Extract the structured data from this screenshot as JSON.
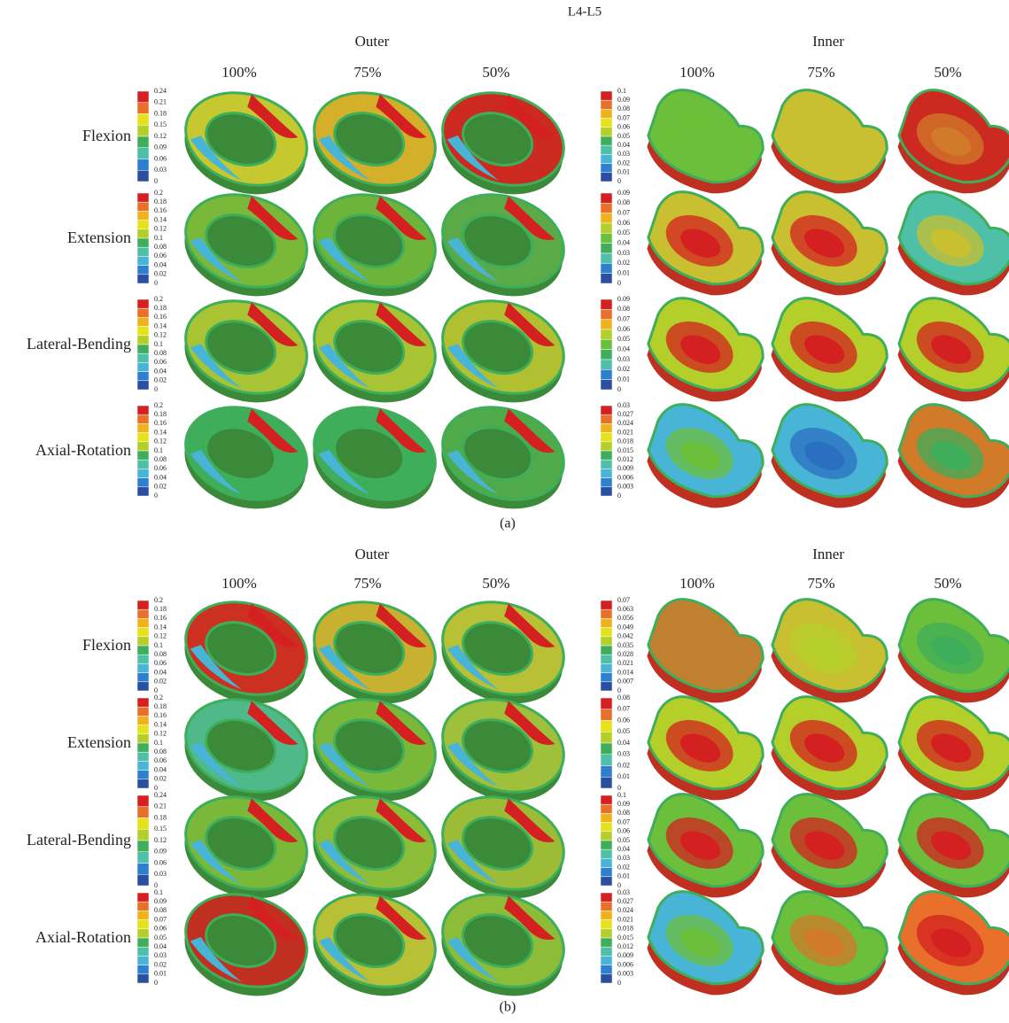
{
  "title": "L4-L5",
  "panels": [
    {
      "label": "(a)",
      "groups": [
        {
          "title": "Outer",
          "columns": [
            "100%",
            "75%",
            "50%"
          ]
        },
        {
          "title": "Inner",
          "columns": [
            "100%",
            "75%",
            "50%"
          ]
        }
      ],
      "rows": [
        {
          "label": "Flexion",
          "legends": [
            [
              "0.24",
              "0.21",
              "0.18",
              "0.15",
              "0.12",
              "0.09",
              "0.06",
              "0.03",
              "0"
            ],
            [
              "0.1",
              "0.09",
              "0.08",
              "0.07",
              "0.06",
              "0.05",
              "0.04",
              "0.03",
              "0.02",
              "0.01",
              "0"
            ]
          ]
        },
        {
          "label": "Extension",
          "legends": [
            [
              "0.2",
              "0.18",
              "0.16",
              "0.14",
              "0.12",
              "0.1",
              "0.08",
              "0.06",
              "0.04",
              "0.02",
              "0"
            ],
            [
              "0.09",
              "0.08",
              "0.07",
              "0.06",
              "0.05",
              "0.04",
              "0.03",
              "0.02",
              "0.01",
              "0"
            ]
          ]
        },
        {
          "label": "Lateral-Bending",
          "legends": [
            [
              "0.2",
              "0.18",
              "0.16",
              "0.14",
              "0.12",
              "0.1",
              "0.08",
              "0.06",
              "0.04",
              "0.02",
              "0"
            ],
            [
              "0.09",
              "0.08",
              "0.07",
              "0.06",
              "0.05",
              "0.04",
              "0.03",
              "0.02",
              "0.01",
              "0"
            ]
          ]
        },
        {
          "label": "Axial-Rotation",
          "legends": [
            [
              "0.2",
              "0.18",
              "0.16",
              "0.14",
              "0.12",
              "0.1",
              "0.08",
              "0.06",
              "0.04",
              "0.02",
              "0"
            ],
            [
              "0.03",
              "0.027",
              "0.024",
              "0.021",
              "0.018",
              "0.015",
              "0.012",
              "0.009",
              "0.006",
              "0.003",
              "0"
            ]
          ]
        }
      ]
    },
    {
      "label": "(b)",
      "groups": [
        {
          "title": "Outer",
          "columns": [
            "100%",
            "75%",
            "50%"
          ]
        },
        {
          "title": "Inner",
          "columns": [
            "100%",
            "75%",
            "50%"
          ]
        }
      ],
      "rows": [
        {
          "label": "Flexion",
          "legends": [
            [
              "0.2",
              "0.18",
              "0.16",
              "0.14",
              "0.12",
              "0.1",
              "0.08",
              "0.06",
              "0.04",
              "0.02",
              "0"
            ],
            [
              "0.07",
              "0.063",
              "0.056",
              "0.049",
              "0.042",
              "0.035",
              "0.028",
              "0.021",
              "0.014",
              "0.007",
              "0"
            ]
          ]
        },
        {
          "label": "Extension",
          "legends": [
            [
              "0.2",
              "0.18",
              "0.16",
              "0.14",
              "0.12",
              "0.1",
              "0.08",
              "0.06",
              "0.04",
              "0.02",
              "0"
            ],
            [
              "0.08",
              "0.07",
              "0.06",
              "0.05",
              "0.04",
              "0.03",
              "0.02",
              "0.01",
              "0"
            ]
          ]
        },
        {
          "label": "Lateral-Bending",
          "legends": [
            [
              "0.24",
              "0.21",
              "0.18",
              "0.15",
              "0.12",
              "0.09",
              "0.06",
              "0.03",
              "0"
            ],
            [
              "0.1",
              "0.09",
              "0.08",
              "0.07",
              "0.06",
              "0.05",
              "0.04",
              "0.03",
              "0.02",
              "0.01",
              "0"
            ]
          ]
        },
        {
          "label": "Axial-Rotation",
          "legends": [
            [
              "0.1",
              "0.09",
              "0.08",
              "0.07",
              "0.06",
              "0.05",
              "0.04",
              "0.03",
              "0.02",
              "0.01",
              "0"
            ],
            [
              "0.03",
              "0.027",
              "0.024",
              "0.021",
              "0.018",
              "0.015",
              "0.012",
              "0.009",
              "0.006",
              "0.003",
              "0"
            ]
          ]
        }
      ]
    }
  ]
}
